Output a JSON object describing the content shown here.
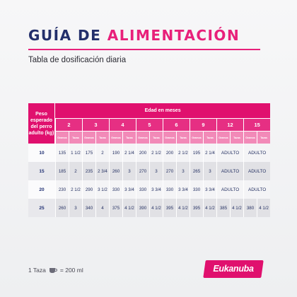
{
  "header": {
    "title_part1": "GUÍA DE",
    "title_part2": "ALIMENTACIÓN",
    "subtitle": "Tabla de dosificación diaria"
  },
  "table": {
    "weight_header": "Peso esperado del perro adulto (kg)",
    "age_header": "Edad en meses",
    "unit_grams": "Gramos",
    "unit_cups": "Tazas",
    "ages": [
      "2",
      "3",
      "4",
      "5",
      "6",
      "9",
      "12",
      "15"
    ],
    "rows": [
      {
        "weight": "10",
        "values": [
          "135",
          "1 1/2",
          "175",
          "2",
          "190",
          "2 1/4",
          "200",
          "2 1/2",
          "200",
          "2 1/2",
          "195",
          "2 1/4",
          "ADULTO",
          "ADULTO"
        ]
      },
      {
        "weight": "15",
        "values": [
          "185",
          "2",
          "235",
          "2 3/4",
          "260",
          "3",
          "270",
          "3",
          "270",
          "3",
          "265",
          "3",
          "ADULTO",
          "ADULTO"
        ]
      },
      {
        "weight": "20",
        "values": [
          "230",
          "2 1/2",
          "290",
          "3 1/2",
          "330",
          "3 3/4",
          "330",
          "3 3/4",
          "330",
          "3 3/4",
          "330",
          "3 3/4",
          "ADULTO",
          "ADULTO"
        ]
      },
      {
        "weight": "25",
        "values": [
          "260",
          "3",
          "340",
          "4",
          "375",
          "4 1/2",
          "390",
          "4 1/2",
          "395",
          "4 1/2",
          "395",
          "4 1/2",
          "385",
          "4 1/2",
          "380",
          "4 1/2"
        ]
      }
    ]
  },
  "footer": {
    "cup_label": "1 Taza",
    "cup_icon": "cup-icon",
    "cup_equals": "= 200 ml",
    "brand": "Eukanuba",
    "brand_color": "#e0106e"
  }
}
